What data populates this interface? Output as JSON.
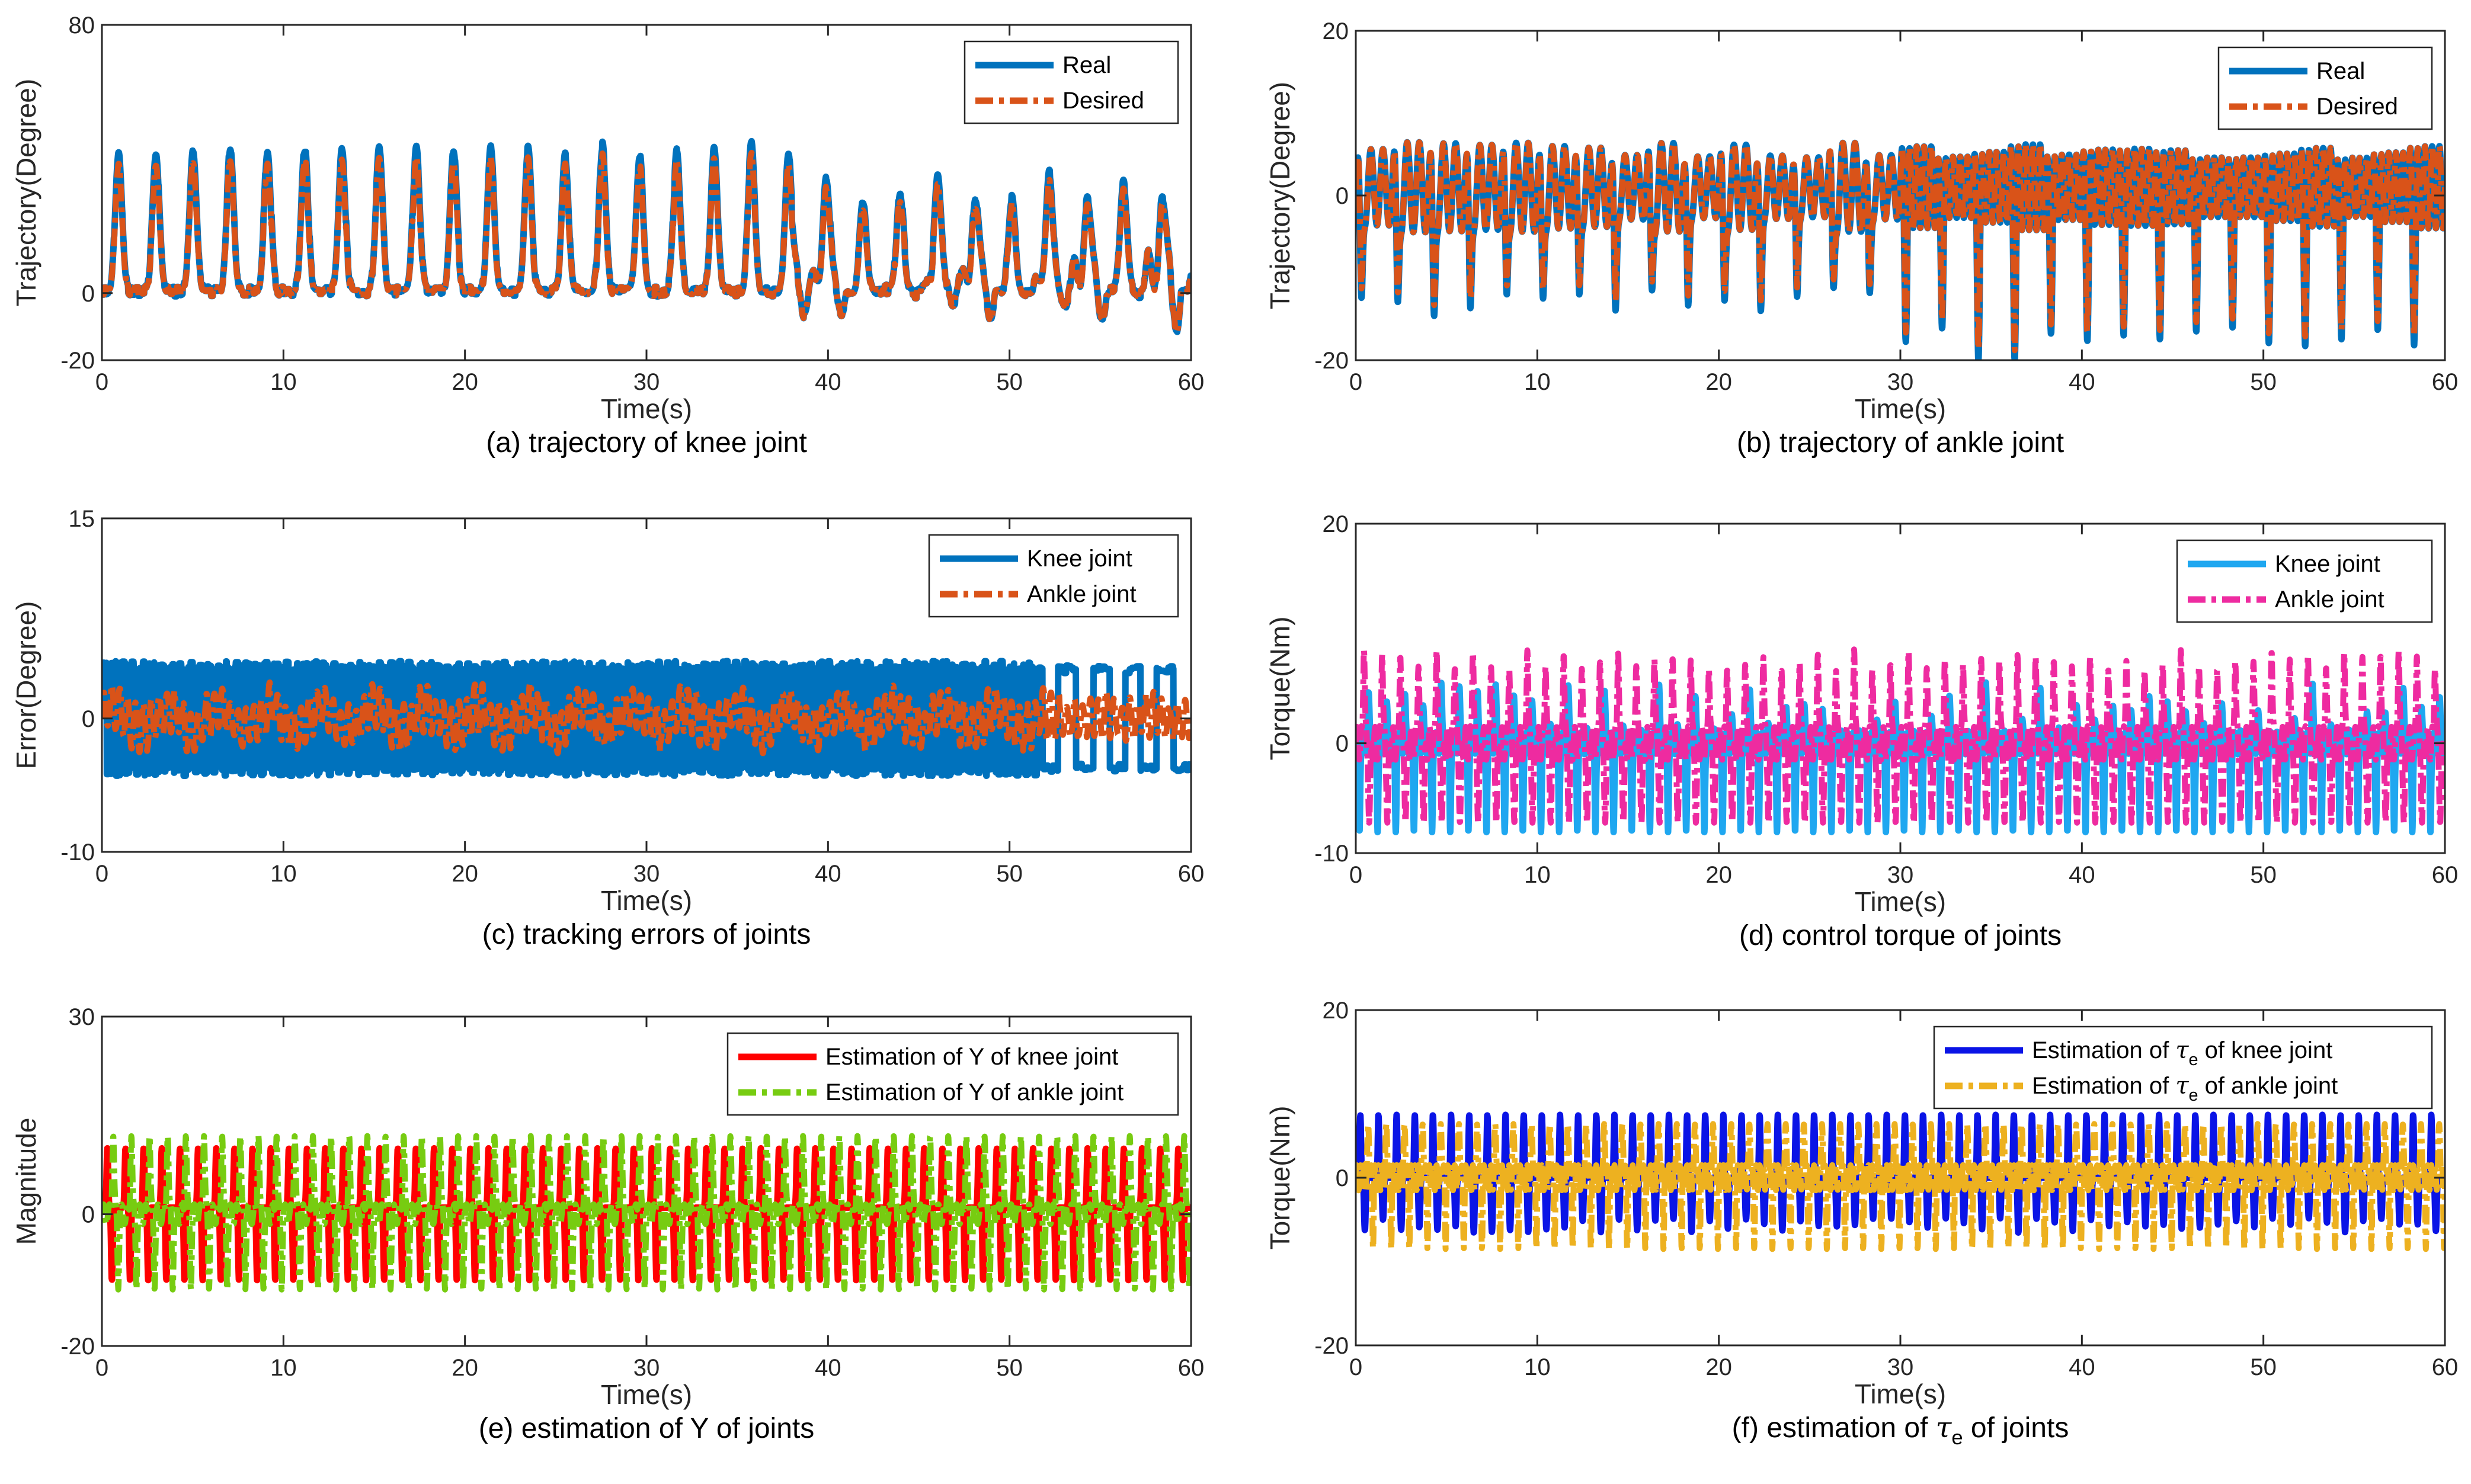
{
  "chart_data": [
    {
      "id": "a",
      "type": "line",
      "caption": "(a) trajectory of knee joint",
      "xlabel": "Time(s)",
      "ylabel": "Trajectory(Degree)",
      "xlim": [
        0,
        60
      ],
      "ylim": [
        -20,
        80
      ],
      "xticks": [
        0,
        10,
        20,
        30,
        40,
        50,
        60
      ],
      "yticks": [
        -20,
        0,
        80
      ],
      "legend_position": "top-right",
      "series": [
        {
          "name": "Real",
          "color": "#0072BD",
          "style": "solid",
          "signal": "knee",
          "amplitude": 1
        },
        {
          "name": "Desired",
          "color": "#D95319",
          "style": "dashdot",
          "signal": "knee",
          "amplitude": 0.92
        }
      ]
    },
    {
      "id": "b",
      "type": "line",
      "caption": "(b) trajectory of ankle joint",
      "xlabel": "Time(s)",
      "ylabel": "Trajectory(Degree)",
      "xlim": [
        0,
        60
      ],
      "ylim": [
        -20,
        20
      ],
      "xticks": [
        0,
        10,
        20,
        30,
        40,
        50,
        60
      ],
      "yticks": [
        -20,
        0,
        20
      ],
      "legend_position": "top-right",
      "series": [
        {
          "name": "Real",
          "color": "#0072BD",
          "style": "solid",
          "signal": "ankle",
          "amplitude": 1
        },
        {
          "name": "Desired",
          "color": "#D95319",
          "style": "dashdot",
          "signal": "ankle",
          "amplitude": 0.92
        }
      ]
    },
    {
      "id": "c",
      "type": "line",
      "caption": "(c) tracking errors of joints",
      "xlabel": "Time(s)",
      "ylabel": "Error(Degree)",
      "xlim": [
        0,
        60
      ],
      "ylim": [
        -10,
        15
      ],
      "xticks": [
        0,
        10,
        20,
        30,
        40,
        50,
        60
      ],
      "yticks": [
        -10,
        0,
        15
      ],
      "legend_position": "top-right",
      "series": [
        {
          "name": "Knee joint",
          "color": "#0072BD",
          "style": "solid",
          "signal": "err_knee",
          "amplitude": 1
        },
        {
          "name": "Ankle joint",
          "color": "#D95319",
          "style": "dashdot",
          "signal": "err_ankle",
          "amplitude": 1
        }
      ]
    },
    {
      "id": "d",
      "type": "line",
      "caption": "(d) control torque of joints",
      "xlabel": "Time(s)",
      "ylabel": "Torque(Nm)",
      "xlim": [
        0,
        60
      ],
      "ylim": [
        -10,
        20
      ],
      "xticks": [
        0,
        10,
        20,
        30,
        40,
        50,
        60
      ],
      "yticks": [
        -10,
        0,
        20
      ],
      "legend_position": "top-right",
      "series": [
        {
          "name": "Knee joint",
          "color": "#1FA7F0",
          "style": "solid",
          "signal": "torque_knee",
          "amplitude": 1
        },
        {
          "name": "Ankle joint",
          "color": "#EE2BA0",
          "style": "dashdot",
          "signal": "torque_ankle",
          "amplitude": 1
        }
      ]
    },
    {
      "id": "e",
      "type": "line",
      "caption": "(e) estimation of Y of joints",
      "xlabel": "Time(s)",
      "ylabel": "Magnitude",
      "xlim": [
        0,
        60
      ],
      "ylim": [
        -20,
        30
      ],
      "xticks": [
        0,
        10,
        20,
        30,
        40,
        50,
        60
      ],
      "yticks": [
        -20,
        0,
        30
      ],
      "legend_position": "top-right",
      "series": [
        {
          "name": "Estimation of Y of knee joint",
          "color": "#FF0000",
          "style": "solid",
          "signal": "y_knee",
          "amplitude": 1
        },
        {
          "name": "Estimation of Y of ankle joint",
          "color": "#77CC11",
          "style": "dashdot",
          "signal": "y_ankle",
          "amplitude": 1
        }
      ]
    },
    {
      "id": "f",
      "type": "line",
      "caption": "(f) estimation of τe of joints",
      "caption_parts": {
        "before": "(f) estimation of ",
        "symbol": "τ",
        "subscript": "e",
        "after": " of joints"
      },
      "xlabel": "Time(s)",
      "ylabel": "Torque(Nm)",
      "xlim": [
        0,
        60
      ],
      "ylim": [
        -20,
        20
      ],
      "xticks": [
        0,
        10,
        20,
        30,
        40,
        50,
        60
      ],
      "yticks": [
        -20,
        0,
        20
      ],
      "legend_position": "top-right",
      "series": [
        {
          "name": "Estimation of τe of knee joint",
          "name_parts": {
            "before": "Estimation of ",
            "symbol": "τ",
            "subscript": "e",
            "after": " of knee joint"
          },
          "color": "#0A14E6",
          "style": "solid",
          "signal": "tau_knee",
          "amplitude": 1
        },
        {
          "name": "Estimation of τe of ankle joint",
          "name_parts": {
            "before": "Estimation of ",
            "symbol": "τ",
            "subscript": "e",
            "after": " of ankle joint"
          },
          "color": "#EDB120",
          "style": "dashdot",
          "signal": "tau_ankle",
          "amplitude": 1
        }
      ]
    }
  ]
}
